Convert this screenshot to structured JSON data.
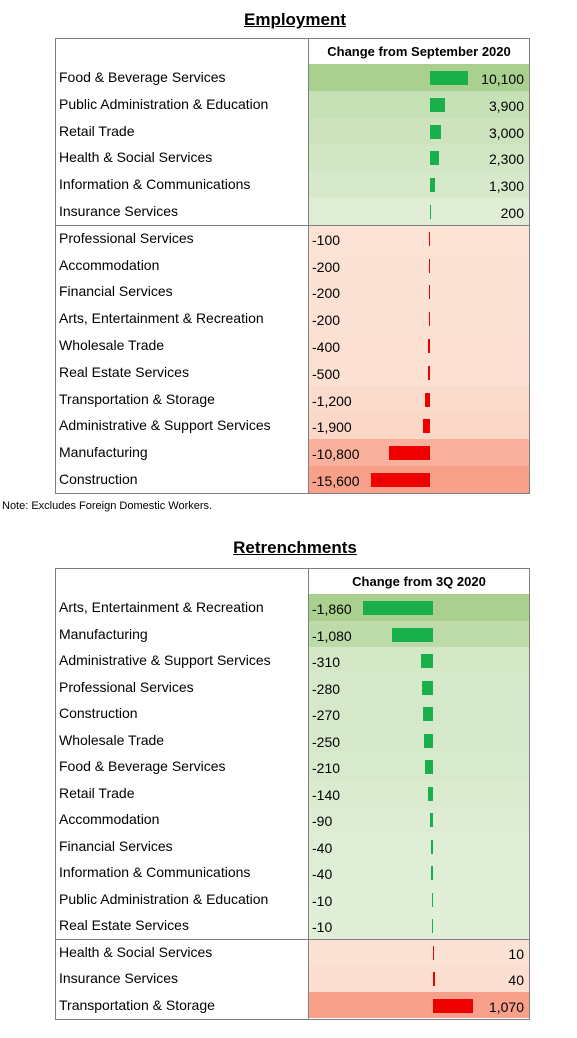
{
  "colors": {
    "positive_bar": "#19b04b",
    "negative_bar": "#ee0000",
    "green_fill": "#e2efda",
    "red_fill": "#fce4d6",
    "green_strong": "#a9d08e",
    "red_strong": "#f8a08a"
  },
  "employment": {
    "title": "Employment",
    "header": "Change from September 2020",
    "note": "Note: Excludes Foreign Domestic Workers."
  },
  "retrenchments": {
    "title": "Retrenchments",
    "header": "Change from 3Q 2020"
  },
  "chart_data": [
    {
      "type": "table",
      "title": "Employment",
      "column": "Change from September 2020",
      "categories": [
        "Food & Beverage Services",
        "Public Administration & Education",
        "Retail Trade",
        "Health & Social Services",
        "Information & Communications",
        "Insurance Services",
        "Professional Services",
        "Accommodation",
        "Financial Services",
        "Arts, Entertainment & Recreation",
        "Wholesale Trade",
        "Real Estate Services",
        "Transportation & Storage",
        "Administrative & Support Services",
        "Manufacturing",
        "Construction"
      ],
      "values": [
        10100,
        3900,
        3000,
        2300,
        1300,
        200,
        -100,
        -200,
        -200,
        -200,
        -400,
        -500,
        -1200,
        -1900,
        -10800,
        -15600
      ],
      "labels": [
        "10,100",
        "3,900",
        "3,000",
        "2,300",
        "1,300",
        "200",
        "-100",
        "-200",
        "-200",
        "-200",
        "-400",
        "-500",
        "-1,200",
        "-1,900",
        "-10,800",
        "-15,600"
      ],
      "positive_color": "#19b04b",
      "negative_color": "#ee0000"
    },
    {
      "type": "table",
      "title": "Retrenchments",
      "column": "Change from 3Q 2020",
      "categories": [
        "Arts, Entertainment & Recreation",
        "Manufacturing",
        "Administrative & Support Services",
        "Professional Services",
        "Construction",
        "Wholesale Trade",
        "Food & Beverage Services",
        "Retail Trade",
        "Accommodation",
        "Financial Services",
        "Information & Communications",
        "Public Administration & Education",
        "Real Estate Services",
        "Health & Social Services",
        "Insurance Services",
        "Transportation & Storage"
      ],
      "values": [
        -1860,
        -1080,
        -310,
        -280,
        -270,
        -250,
        -210,
        -140,
        -90,
        -40,
        -40,
        -10,
        -10,
        10,
        40,
        1070
      ],
      "labels": [
        "-1,860",
        "-1,080",
        "-310",
        "-280",
        "-270",
        "-250",
        "-210",
        "-140",
        "-90",
        "-40",
        "-40",
        "-10",
        "-10",
        "10",
        "40",
        "1,070"
      ],
      "negative_color": "#19b04b",
      "positive_color": "#ee0000"
    }
  ]
}
